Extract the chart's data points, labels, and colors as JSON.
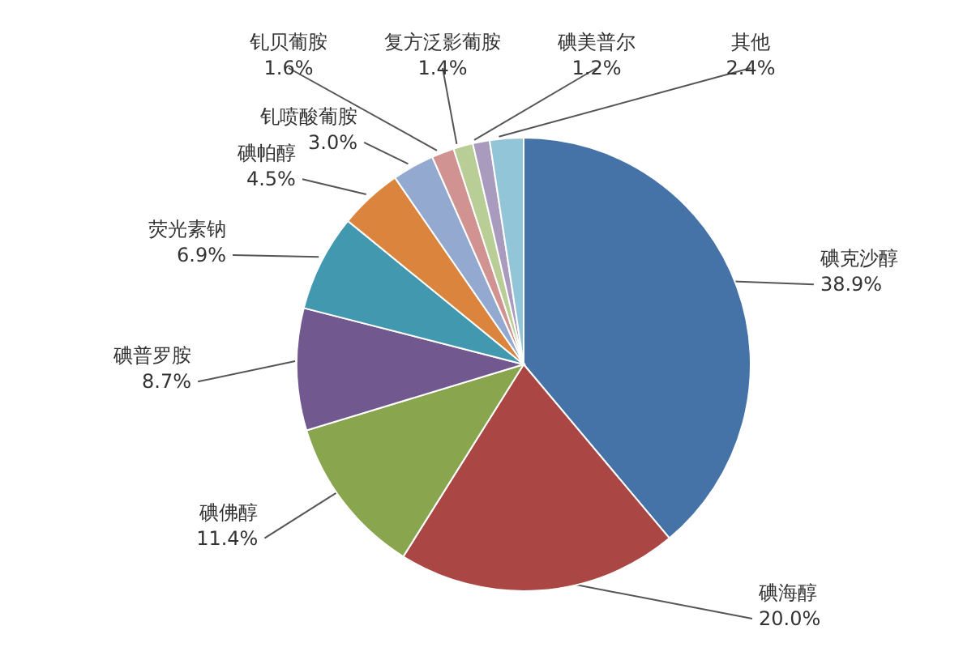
{
  "chart_data": {
    "type": "pie",
    "categories": [
      "碘克沙醇",
      "碘海醇",
      "碘佛醇",
      "碘普罗胺",
      "荧光素钠",
      "碘帕醇",
      "钆喷酸葡胺",
      "钆贝葡胺",
      "复方泛影葡胺",
      "碘美普尔",
      "其他"
    ],
    "values": [
      38.9,
      20.0,
      11.4,
      8.7,
      6.9,
      4.5,
      3.0,
      1.6,
      1.4,
      1.2,
      2.4
    ],
    "value_labels": [
      "38.9%",
      "20.0%",
      "11.4%",
      "8.7%",
      "6.9%",
      "4.5%",
      "3.0%",
      "1.6%",
      "1.4%",
      "1.2%",
      "2.4%"
    ],
    "colors": [
      "#4572a7",
      "#aa4643",
      "#89a54e",
      "#71588f",
      "#4198af",
      "#db843d",
      "#93a9cf",
      "#d19392",
      "#b9cd96",
      "#a99bbd",
      "#92c5d7"
    ],
    "legend": false
  }
}
